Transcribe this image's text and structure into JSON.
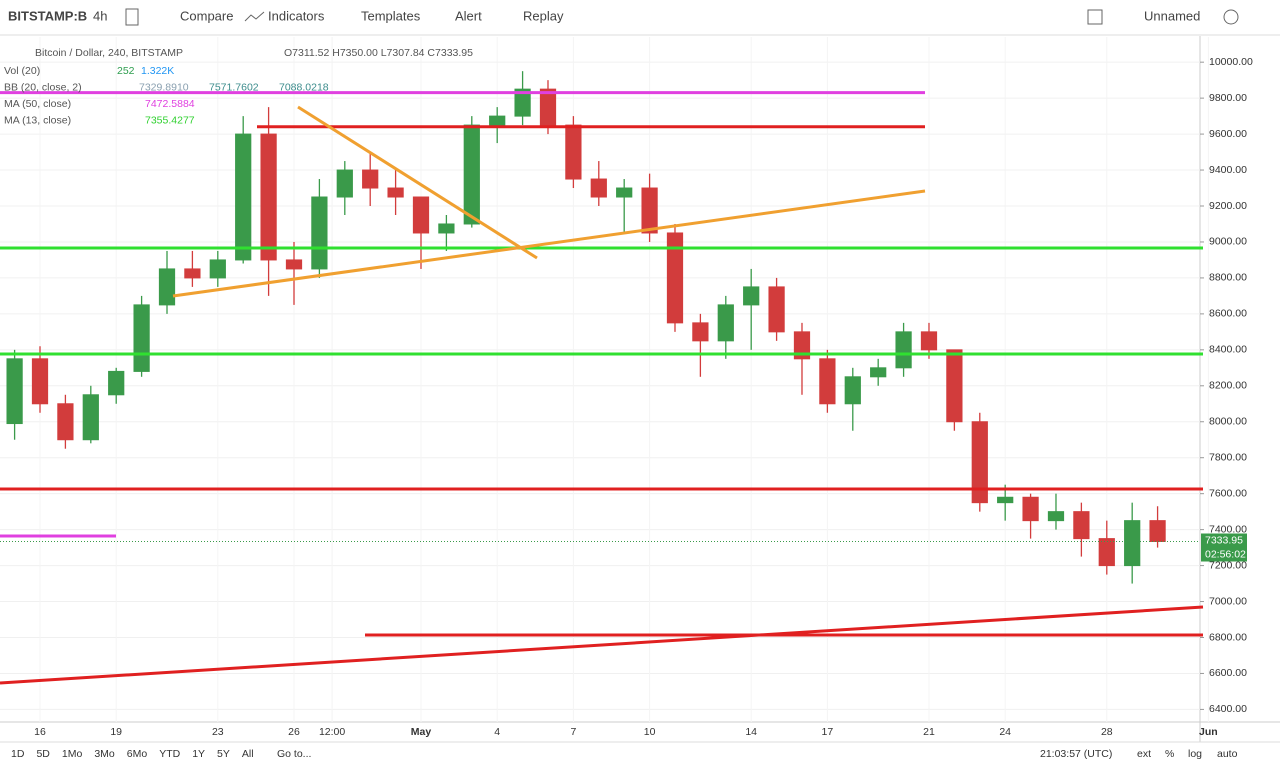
{
  "toolbar": {
    "symbol": "BITSTAMP:B",
    "interval": "4h",
    "compare": "Compare",
    "indicators": "Indicators",
    "templates": "Templates",
    "alert": "Alert",
    "replay": "Replay",
    "layout": "Unnamed"
  },
  "bottom_bar": {
    "ranges": [
      "1D",
      "5D",
      "1Mo",
      "3Mo",
      "6Mo",
      "YTD",
      "1Y",
      "5Y",
      "All"
    ],
    "goto": "Go to...",
    "clock": "21:03:57 (UTC)",
    "ext": "ext",
    "percent": "%",
    "log": "log",
    "auto": "auto"
  },
  "chart_data": {
    "type": "candlestick",
    "title": "Bitcoin / Dollar, 240, BITSTAMP",
    "ohlc_text": "O7311.52 H7350.00 L7307.84 C7333.95",
    "indicators": [
      {
        "name": "Vol (20)",
        "values": [
          "252",
          "1.322K"
        ],
        "colors": [
          "#2e9e4f",
          "#2196f3"
        ]
      },
      {
        "name": "BB (20, close, 2)",
        "values": [
          "7329.8910",
          "7571.7602",
          "7088.0218"
        ],
        "colors": [
          "#8aa0b0",
          "#3c8c8c",
          "#3c8c8c"
        ]
      },
      {
        "name": "MA (50, close)",
        "values": [
          "7472.5884"
        ],
        "colors": [
          "#e040e0"
        ]
      },
      {
        "name": "MA (13, close)",
        "values": [
          "7355.4277"
        ],
        "colors": [
          "#30d030"
        ]
      }
    ],
    "x": [
      0,
      1,
      2,
      3,
      4,
      5,
      6,
      7,
      8,
      9,
      10,
      11,
      12,
      13,
      14,
      15,
      16,
      17,
      18,
      19,
      20,
      21,
      22,
      23,
      24,
      25,
      26,
      27,
      28,
      29,
      30,
      31,
      32,
      33,
      34,
      35,
      36,
      37,
      38,
      39,
      40,
      41,
      42,
      43,
      44,
      45
    ],
    "open": [
      7990,
      8350,
      8100,
      7900,
      8150,
      8280,
      8650,
      8850,
      8800,
      8900,
      9600,
      8900,
      8850,
      9250,
      9400,
      9300,
      9250,
      9050,
      9100,
      9650,
      9700,
      9850,
      9650,
      9350,
      9250,
      9300,
      9050,
      8550,
      8450,
      8650,
      8750,
      8500,
      8350,
      8100,
      8250,
      8300,
      8500,
      8400,
      8000,
      7550,
      7580,
      7450,
      7500,
      7350,
      7200,
      7450
    ],
    "high": [
      8400,
      8420,
      8150,
      8200,
      8300,
      8700,
      8950,
      8950,
      8950,
      9700,
      9750,
      9000,
      9350,
      9450,
      9500,
      9400,
      9250,
      9150,
      9700,
      9750,
      9950,
      9900,
      9700,
      9450,
      9350,
      9380,
      9100,
      8600,
      8700,
      8850,
      8800,
      8550,
      8400,
      8300,
      8350,
      8550,
      8550,
      8400,
      8050,
      7650,
      7600,
      7600,
      7550,
      7450,
      7550,
      7530
    ],
    "low": [
      7900,
      8050,
      7850,
      7880,
      8100,
      8250,
      8600,
      8750,
      8750,
      8880,
      8700,
      8650,
      8800,
      9150,
      9200,
      9150,
      8850,
      8950,
      9080,
      9550,
      9650,
      9600,
      9300,
      9200,
      9050,
      9000,
      8500,
      8250,
      8350,
      8400,
      8450,
      8150,
      8050,
      7950,
      8200,
      8250,
      8350,
      7950,
      7500,
      7450,
      7350,
      7400,
      7250,
      7150,
      7100,
      7300
    ],
    "close": [
      8350,
      8100,
      7900,
      8150,
      8280,
      8650,
      8850,
      8800,
      8900,
      9600,
      8900,
      8850,
      9250,
      9400,
      9300,
      9250,
      9050,
      9100,
      9650,
      9700,
      9850,
      9650,
      9350,
      9250,
      9300,
      9050,
      8550,
      8450,
      8650,
      8750,
      8500,
      8350,
      8100,
      8250,
      8300,
      8500,
      8400,
      8000,
      7550,
      7580,
      7450,
      7500,
      7350,
      7200,
      7450,
      7334
    ],
    "up_color": "#3a9a4a",
    "down_color": "#d23c3c",
    "xlim": [
      -0.575,
      46.67
    ],
    "xticks": [
      {
        "value": 1,
        "label": "16"
      },
      {
        "value": 4,
        "label": "19"
      },
      {
        "value": 8,
        "label": "23"
      },
      {
        "value": 11,
        "label": "26"
      },
      {
        "value": 12.5,
        "label": "12:00"
      },
      {
        "value": 16,
        "label": "May"
      },
      {
        "value": 19,
        "label": "4"
      },
      {
        "value": 22,
        "label": "7"
      },
      {
        "value": 25,
        "label": "10"
      },
      {
        "value": 29,
        "label": "14"
      },
      {
        "value": 32,
        "label": "17"
      },
      {
        "value": 36,
        "label": "21"
      },
      {
        "value": 39,
        "label": "24"
      },
      {
        "value": 43,
        "label": "28"
      },
      {
        "value": 47,
        "label": "Jun"
      }
    ],
    "ylim": [
      6330,
      10140
    ],
    "yticks": [
      {
        "value": 6400,
        "label": "6400.00"
      },
      {
        "value": 6600,
        "label": "6600.00"
      },
      {
        "value": 6800,
        "label": "6800.00"
      },
      {
        "value": 7000,
        "label": "7000.00"
      },
      {
        "value": 7200,
        "label": "7200.00"
      },
      {
        "value": 7400,
        "label": "7400.00"
      },
      {
        "value": 7600,
        "label": "7600.00"
      },
      {
        "value": 7800,
        "label": "7800.00"
      },
      {
        "value": 8000,
        "label": "8000.00"
      },
      {
        "value": 8200,
        "label": "8200.00"
      },
      {
        "value": 8400,
        "label": "8400.00"
      },
      {
        "value": 8600,
        "label": "8600.00"
      },
      {
        "value": 8800,
        "label": "8800.00"
      },
      {
        "value": 9000,
        "label": "9000.00"
      },
      {
        "value": 9200,
        "label": "9200.00"
      },
      {
        "value": 9400,
        "label": "9400.00"
      },
      {
        "value": 9600,
        "label": "9600.00"
      },
      {
        "value": 9800,
        "label": "9800.00"
      },
      {
        "value": 10000,
        "label": "10000.00"
      }
    ],
    "last_price": 7333.95,
    "countdown": "02:56:02"
  }
}
